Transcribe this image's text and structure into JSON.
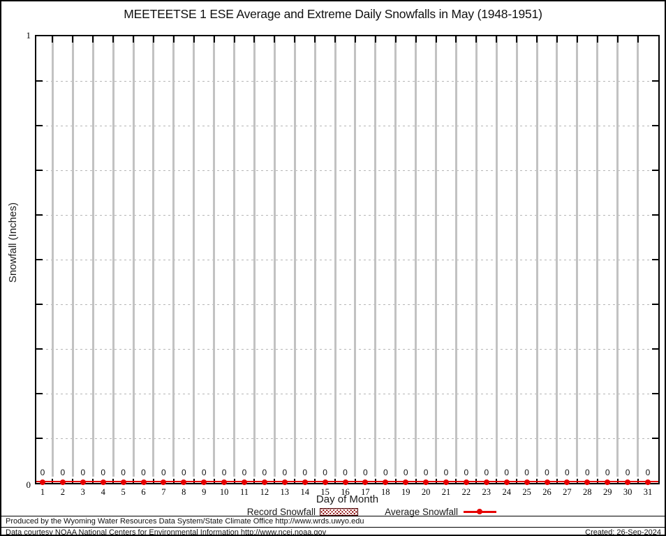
{
  "title": "MEETEETSE 1 ESE Average and Extreme Daily Snowfalls in May (1948-1951)",
  "axes": {
    "x_label": "Day of Month",
    "y_label": "Snowfall (Inches)",
    "y_top_tick": "1",
    "y_bottom_tick": "0"
  },
  "legend": {
    "record_label": "Record Snowfall",
    "average_label": "Average Snowfall"
  },
  "footer": {
    "line1": "Produced by the Wyoming Water Resources Data System/State Climate Office http://www.wrds.uwyo.edu",
    "line2": "Data courtesy NOAA National Centers for Environmental Information http://www.ncei.noaa.gov",
    "created": "Created: 26-Sep-2024"
  },
  "colors": {
    "series_red": "#e60000",
    "record_fill": "#8b0000",
    "vertical_grid": "#c2c2c2",
    "horizontal_grid": "#b6b6b6"
  },
  "chart_data": {
    "type": "line",
    "title": "MEETEETSE 1 ESE Average and Extreme Daily Snowfalls in May (1948-1951)",
    "xlabel": "Day of Month",
    "ylabel": "Snowfall (Inches)",
    "x": [
      1,
      2,
      3,
      4,
      5,
      6,
      7,
      8,
      9,
      10,
      11,
      12,
      13,
      14,
      15,
      16,
      17,
      18,
      19,
      20,
      21,
      22,
      23,
      24,
      25,
      26,
      27,
      28,
      29,
      30,
      31
    ],
    "series": [
      {
        "name": "Record Snowfall",
        "style": "hatched-bar",
        "color": "#8b0000",
        "values": [
          0,
          0,
          0,
          0,
          0,
          0,
          0,
          0,
          0,
          0,
          0,
          0,
          0,
          0,
          0,
          0,
          0,
          0,
          0,
          0,
          0,
          0,
          0,
          0,
          0,
          0,
          0,
          0,
          0,
          0,
          0
        ]
      },
      {
        "name": "Average Snowfall",
        "style": "line-with-points",
        "color": "#e60000",
        "values": [
          0,
          0,
          0,
          0,
          0,
          0,
          0,
          0,
          0,
          0,
          0,
          0,
          0,
          0,
          0,
          0,
          0,
          0,
          0,
          0,
          0,
          0,
          0,
          0,
          0,
          0,
          0,
          0,
          0,
          0,
          0
        ]
      }
    ],
    "point_labels_shown": true,
    "ylim": [
      0,
      1
    ],
    "ytick_labeled_values": [
      0,
      1
    ],
    "ytick_minor_interval": 0.1,
    "grid": {
      "vertical": "solid gray at half-day positions",
      "horizontal": "dotted at 0.1 intervals"
    },
    "legend_position": "bottom-center"
  }
}
